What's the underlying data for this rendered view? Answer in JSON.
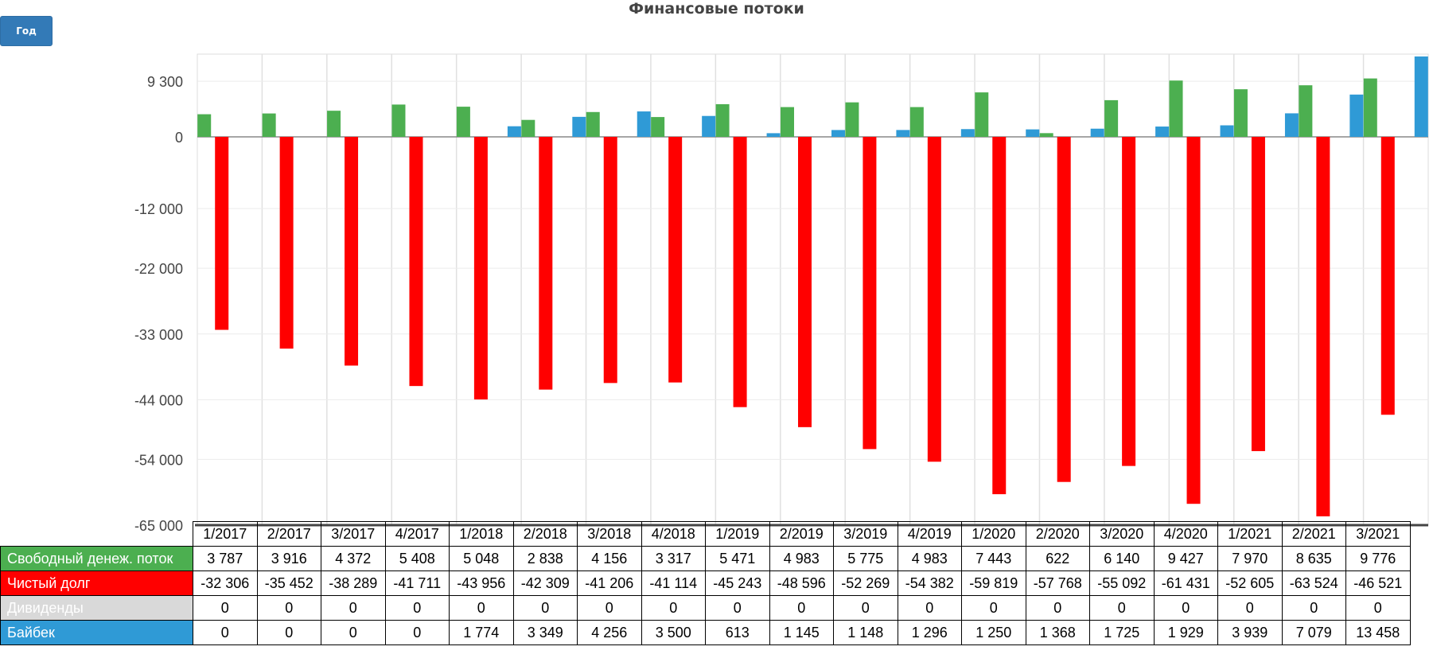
{
  "title": "Финансовые потоки",
  "period_button": "Год",
  "chart_data": {
    "type": "bar",
    "title": "Финансовые потоки",
    "categories": [
      "1/2017",
      "2/2017",
      "3/2017",
      "4/2017",
      "1/2018",
      "2/2018",
      "3/2018",
      "4/2018",
      "1/2019",
      "2/2019",
      "3/2019",
      "4/2019",
      "1/2020",
      "2/2020",
      "3/2020",
      "4/2020",
      "1/2021",
      "2/2021",
      "3/2021"
    ],
    "ylim": [
      -65000,
      14000
    ],
    "yticks": [
      9300,
      0,
      -12000,
      -22000,
      -33000,
      -44000,
      -54000,
      -65000
    ],
    "ytick_labels": [
      "9 300",
      "0",
      "-12 000",
      "-22 000",
      "-33 000",
      "-44 000",
      "-54 000",
      "-65 000"
    ],
    "grid": true,
    "legend": "table-below",
    "series": [
      {
        "name": "Свободный денеж. поток",
        "color": "#4caf50",
        "values": [
          3787,
          3916,
          4372,
          5408,
          5048,
          2838,
          4156,
          3317,
          5471,
          4983,
          5775,
          4983,
          7443,
          622,
          6140,
          9427,
          7970,
          8635,
          9776
        ],
        "labels": [
          "3 787",
          "3 916",
          "4 372",
          "5 408",
          "5 048",
          "2 838",
          "4 156",
          "3 317",
          "5 471",
          "4 983",
          "5 775",
          "4 983",
          "7 443",
          "622",
          "6 140",
          "9 427",
          "7 970",
          "8 635",
          "9 776"
        ]
      },
      {
        "name": "Чистый долг",
        "color": "#ff0000",
        "values": [
          -32306,
          -35452,
          -38289,
          -41711,
          -43956,
          -42309,
          -41206,
          -41114,
          -45243,
          -48596,
          -52269,
          -54382,
          -59819,
          -57768,
          -55092,
          -61431,
          -52605,
          -63524,
          -46521
        ],
        "labels": [
          "-32 306",
          "-35 452",
          "-38 289",
          "-41 711",
          "-43 956",
          "-42 309",
          "-41 206",
          "-41 114",
          "-45 243",
          "-48 596",
          "-52 269",
          "-54 382",
          "-59 819",
          "-57 768",
          "-55 092",
          "-61 431",
          "-52 605",
          "-63 524",
          "-46 521"
        ]
      },
      {
        "name": "Дивиденды",
        "color": "#d9d9d9",
        "values": [
          0,
          0,
          0,
          0,
          0,
          0,
          0,
          0,
          0,
          0,
          0,
          0,
          0,
          0,
          0,
          0,
          0,
          0,
          0
        ],
        "labels": [
          "0",
          "0",
          "0",
          "0",
          "0",
          "0",
          "0",
          "0",
          "0",
          "0",
          "0",
          "0",
          "0",
          "0",
          "0",
          "0",
          "0",
          "0",
          "0"
        ]
      },
      {
        "name": "Байбек",
        "color": "#2f9ad6",
        "values": [
          0,
          0,
          0,
          0,
          1774,
          3349,
          4256,
          3500,
          613,
          1145,
          1148,
          1296,
          1250,
          1368,
          1725,
          1929,
          3939,
          7079,
          13458
        ],
        "labels": [
          "0",
          "0",
          "0",
          "0",
          "1 774",
          "3 349",
          "4 256",
          "3 500",
          "613",
          "1 145",
          "1 148",
          "1 296",
          "1 250",
          "1 368",
          "1 725",
          "1 929",
          "3 939",
          "7 079",
          "13 458"
        ]
      }
    ]
  }
}
